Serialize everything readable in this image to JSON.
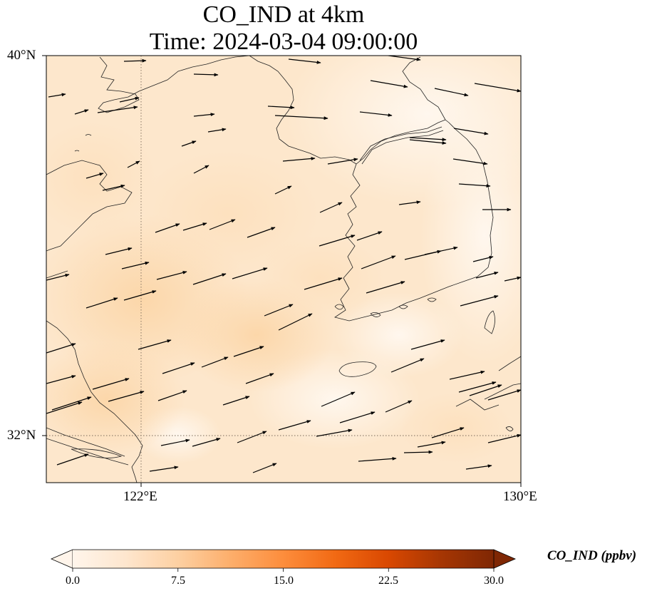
{
  "title": {
    "line1": "CO_IND at 4km",
    "line2": "Time: 2024-03-04 09:00:00"
  },
  "map": {
    "lon_range": [
      120,
      130
    ],
    "lat_range": [
      31,
      40
    ],
    "lat_tick_labels": [
      "40°N",
      "32°N"
    ],
    "lon_tick_labels": [
      "122°E",
      "130°E"
    ],
    "gridline_lon": 122,
    "gridline_lat": 32,
    "gridlines": "dotted"
  },
  "field": {
    "variable": "CO_IND",
    "units": "ppbv",
    "min_color": "#fff5eb",
    "low_color": "#fde2c2",
    "mid_color": "#fdd4a5"
  },
  "wind_vectors": "arrows pointing predominantly east / east-northeast",
  "colorbar": {
    "label": "CO_IND (ppbv)",
    "ticks": [
      "0.0",
      "7.5",
      "15.0",
      "22.5",
      "30.0"
    ],
    "range": [
      0,
      30
    ],
    "colors": [
      "#fff5eb",
      "#fee6ce",
      "#fdd0a2",
      "#fdae6b",
      "#fd8d3c",
      "#f16913",
      "#d94801",
      "#a63603",
      "#7f2704"
    ],
    "extend": "both"
  }
}
